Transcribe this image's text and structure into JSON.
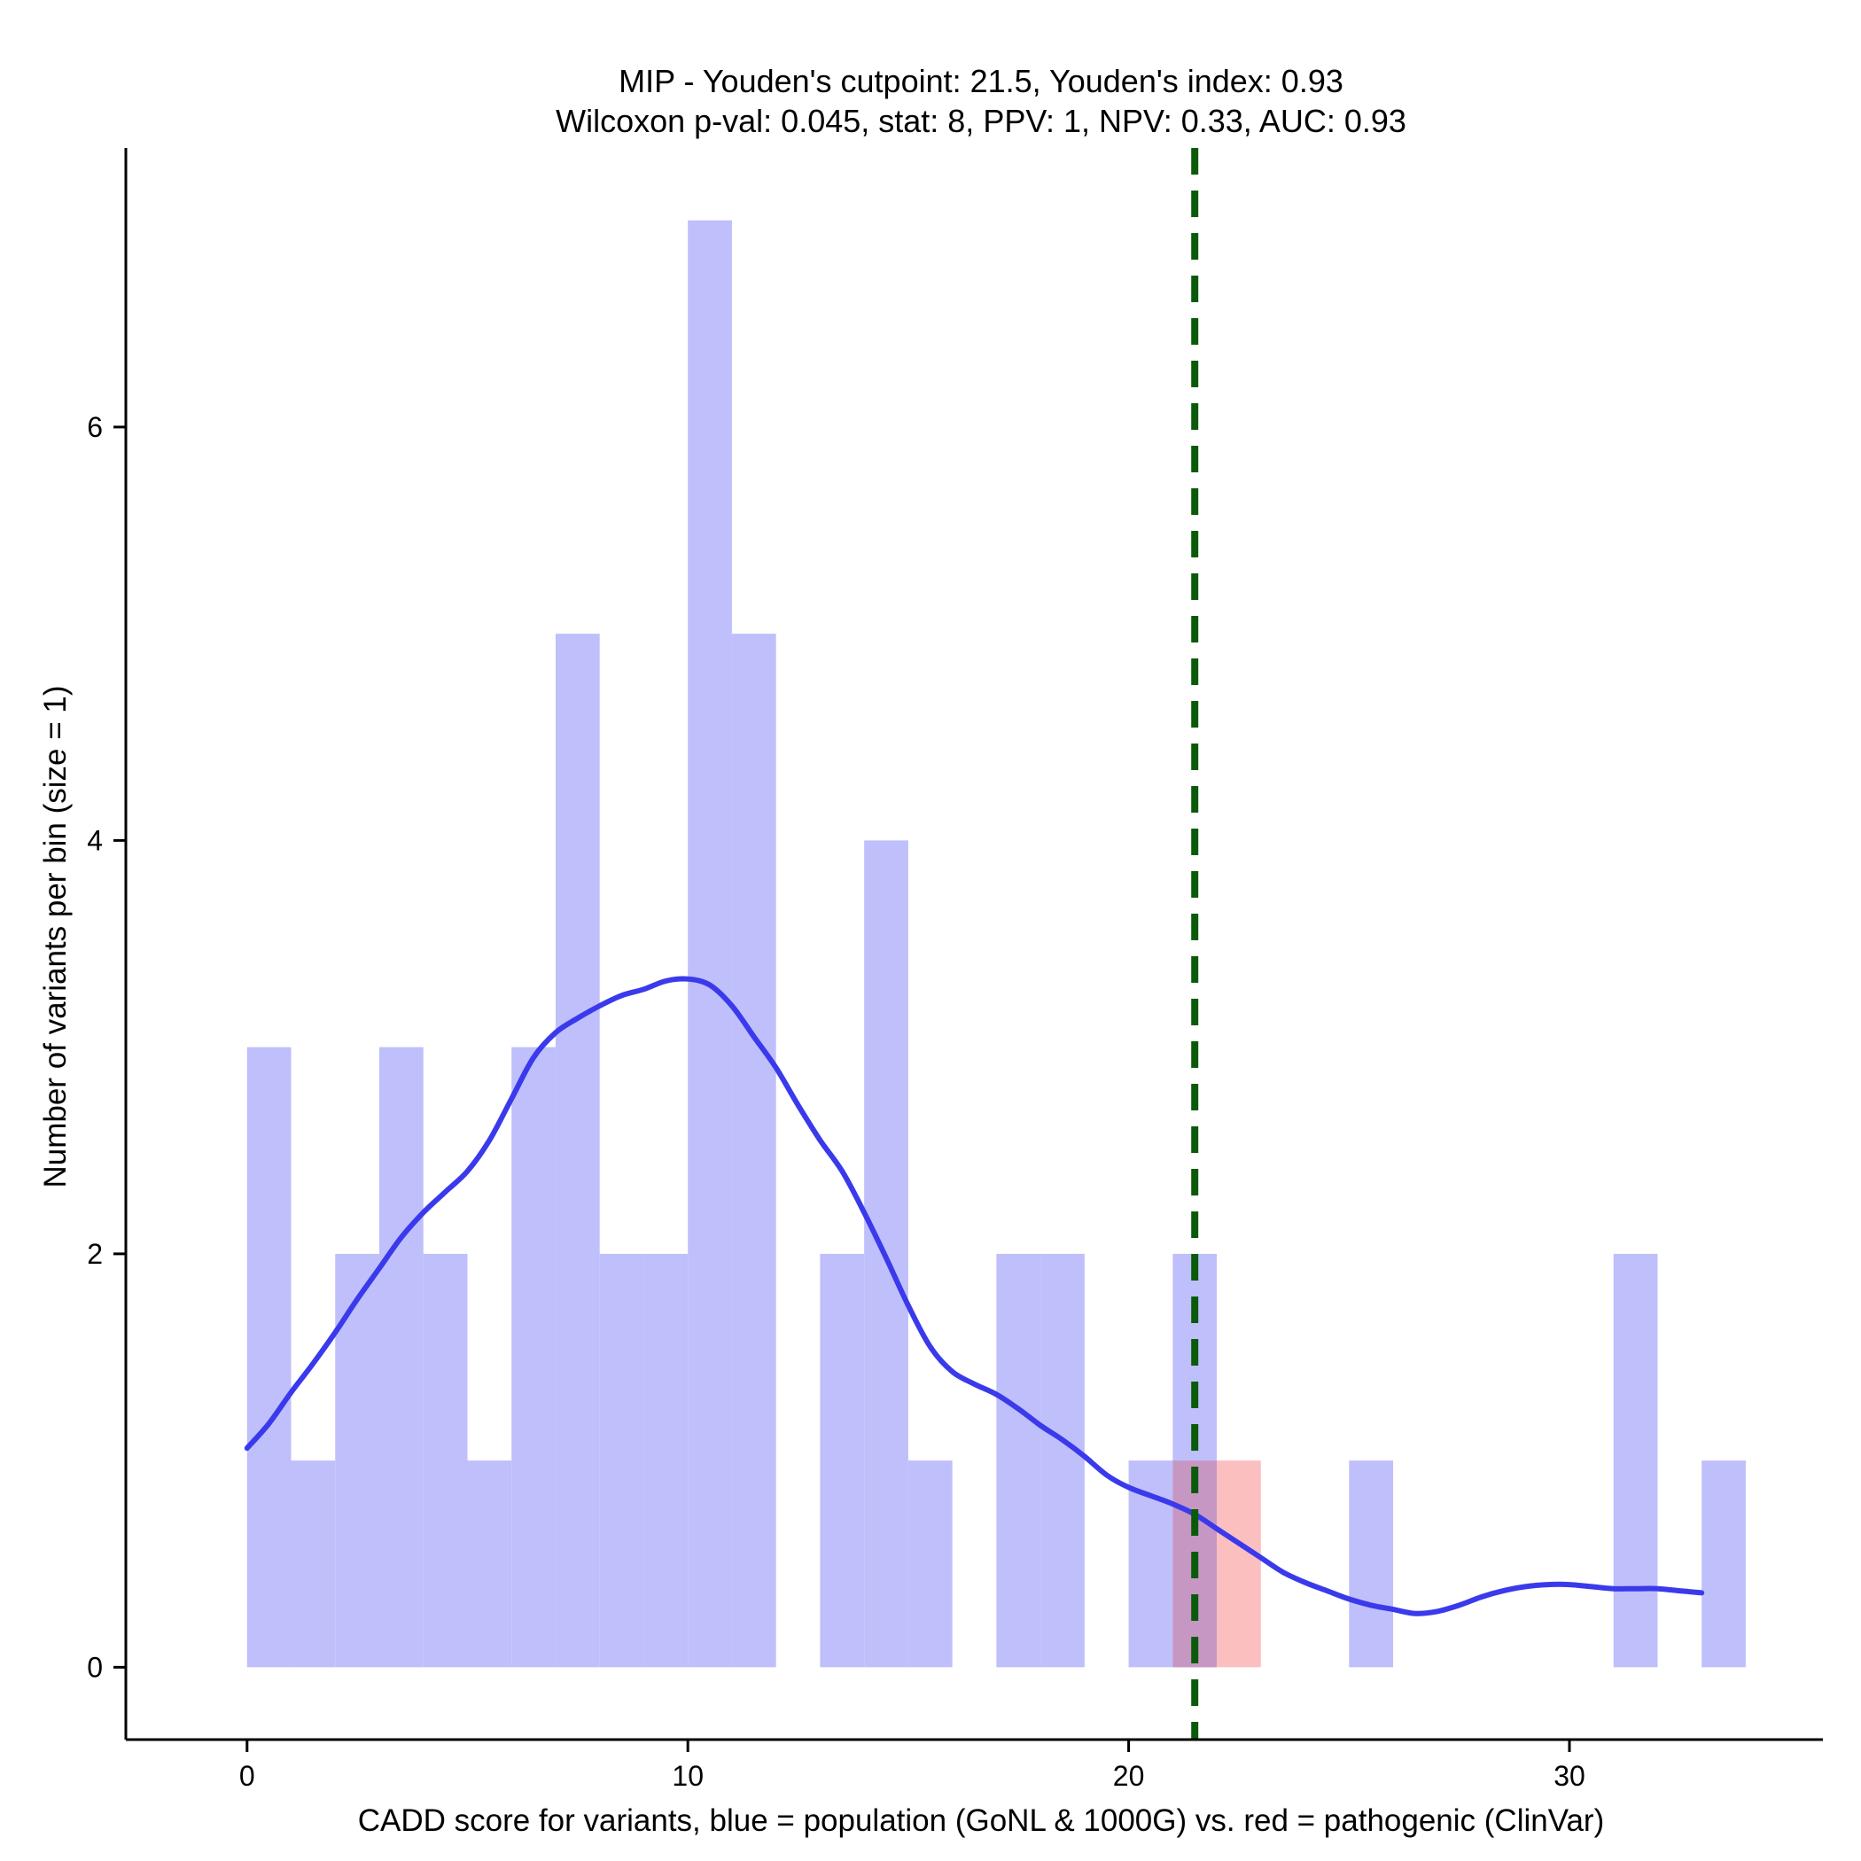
{
  "chart_data": {
    "type": "histogram",
    "title_line1": "MIP - Youden's cutpoint: 21.5, Youden's index: 0.93",
    "title_line2": "Wilcoxon p-val: 0.045, stat: 8, PPV: 1, NPV: 0.33, AUC: 0.93",
    "xlabel": "CADD score for variants, blue = population (GoNL & 1000G) vs. red = pathogenic (ClinVar)",
    "ylabel": "Number of variants per bin (size = 1)",
    "xlim": [
      -2.75,
      35.75
    ],
    "ylim": [
      -0.35,
      7.35
    ],
    "xticks": [
      0,
      10,
      20,
      30
    ],
    "yticks": [
      0,
      2,
      4,
      6
    ],
    "bin_width": 1,
    "population_color": "#bfbffc",
    "pathogenic_color": "#fcbfbf",
    "overlap_color": "#c797c4",
    "density_color": "#3a3aec",
    "cutpoint_color": "#0a5a0a",
    "cutpoint": 21.5,
    "population_bins": [
      {
        "start": 0,
        "count": 3
      },
      {
        "start": 1,
        "count": 1
      },
      {
        "start": 2,
        "count": 2
      },
      {
        "start": 3,
        "count": 3
      },
      {
        "start": 4,
        "count": 2
      },
      {
        "start": 5,
        "count": 1
      },
      {
        "start": 6,
        "count": 3
      },
      {
        "start": 7,
        "count": 5
      },
      {
        "start": 8,
        "count": 2
      },
      {
        "start": 9,
        "count": 2
      },
      {
        "start": 10,
        "count": 7
      },
      {
        "start": 11,
        "count": 5
      },
      {
        "start": 13,
        "count": 2
      },
      {
        "start": 14,
        "count": 4
      },
      {
        "start": 15,
        "count": 1
      },
      {
        "start": 17,
        "count": 2
      },
      {
        "start": 18,
        "count": 2
      },
      {
        "start": 20,
        "count": 1
      },
      {
        "start": 21,
        "count": 2
      },
      {
        "start": 25,
        "count": 1
      },
      {
        "start": 31,
        "count": 2
      },
      {
        "start": 33,
        "count": 1
      }
    ],
    "pathogenic_bins": [
      {
        "start": 21,
        "count": 1
      },
      {
        "start": 22,
        "count": 1
      }
    ],
    "density_curve": {
      "x": [
        0,
        0.5,
        1,
        1.5,
        2,
        2.5,
        3,
        3.5,
        4,
        4.5,
        5,
        5.5,
        6,
        6.5,
        7,
        7.5,
        8,
        8.5,
        9,
        9.5,
        10,
        10.5,
        11,
        11.5,
        12,
        12.5,
        13,
        13.5,
        14,
        14.5,
        15,
        15.5,
        16,
        16.5,
        17,
        17.5,
        18,
        18.5,
        19,
        19.5,
        20,
        20.5,
        21,
        21.5,
        22,
        22.5,
        23,
        23.5,
        24,
        24.5,
        25,
        25.5,
        26,
        26.5,
        27,
        27.5,
        28,
        28.5,
        29,
        29.5,
        30,
        30.5,
        31,
        31.5,
        32,
        32.5,
        33
      ],
      "y": [
        1.06,
        1.18,
        1.33,
        1.47,
        1.62,
        1.78,
        1.93,
        2.08,
        2.2,
        2.3,
        2.4,
        2.55,
        2.75,
        2.95,
        3.07,
        3.14,
        3.2,
        3.25,
        3.28,
        3.32,
        3.33,
        3.3,
        3.2,
        3.05,
        2.9,
        2.72,
        2.55,
        2.4,
        2.2,
        1.98,
        1.75,
        1.55,
        1.43,
        1.37,
        1.32,
        1.25,
        1.17,
        1.1,
        1.02,
        0.93,
        0.87,
        0.83,
        0.79,
        0.74,
        0.67,
        0.6,
        0.53,
        0.46,
        0.41,
        0.37,
        0.33,
        0.3,
        0.28,
        0.26,
        0.27,
        0.3,
        0.34,
        0.37,
        0.39,
        0.4,
        0.4,
        0.39,
        0.38,
        0.38,
        0.38,
        0.37,
        0.36
      ]
    }
  }
}
